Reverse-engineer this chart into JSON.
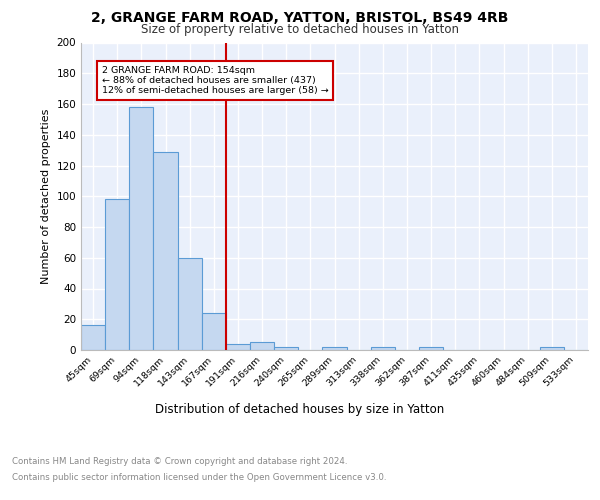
{
  "title1": "2, GRANGE FARM ROAD, YATTON, BRISTOL, BS49 4RB",
  "title2": "Size of property relative to detached houses in Yatton",
  "xlabel": "Distribution of detached houses by size in Yatton",
  "ylabel": "Number of detached properties",
  "bin_labels": [
    "45sqm",
    "69sqm",
    "94sqm",
    "118sqm",
    "143sqm",
    "167sqm",
    "191sqm",
    "216sqm",
    "240sqm",
    "265sqm",
    "289sqm",
    "313sqm",
    "338sqm",
    "362sqm",
    "387sqm",
    "411sqm",
    "435sqm",
    "460sqm",
    "484sqm",
    "509sqm",
    "533sqm"
  ],
  "bar_heights": [
    16,
    98,
    158,
    129,
    60,
    24,
    4,
    5,
    2,
    0,
    2,
    0,
    2,
    0,
    2,
    0,
    0,
    0,
    0,
    2,
    0
  ],
  "bar_color": "#c5d8f0",
  "bar_edge_color": "#5b9bd5",
  "vline_x": 5.5,
  "vline_color": "#cc0000",
  "annotation_text": "2 GRANGE FARM ROAD: 154sqm\n← 88% of detached houses are smaller (437)\n12% of semi-detached houses are larger (58) →",
  "annotation_box_color": "#ffffff",
  "annotation_box_edge": "#cc0000",
  "ylim": [
    0,
    200
  ],
  "yticks": [
    0,
    20,
    40,
    60,
    80,
    100,
    120,
    140,
    160,
    180,
    200
  ],
  "footer_line1": "Contains HM Land Registry data © Crown copyright and database right 2024.",
  "footer_line2": "Contains public sector information licensed under the Open Government Licence v3.0.",
  "bg_color": "#eaf0fb",
  "grid_color": "#ffffff"
}
